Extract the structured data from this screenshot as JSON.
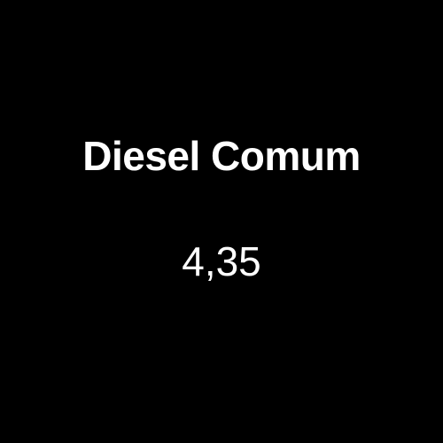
{
  "product": {
    "name": "Diesel Comum",
    "price": "4,35"
  },
  "colors": {
    "background": "#000000",
    "text": "#ffffff"
  }
}
